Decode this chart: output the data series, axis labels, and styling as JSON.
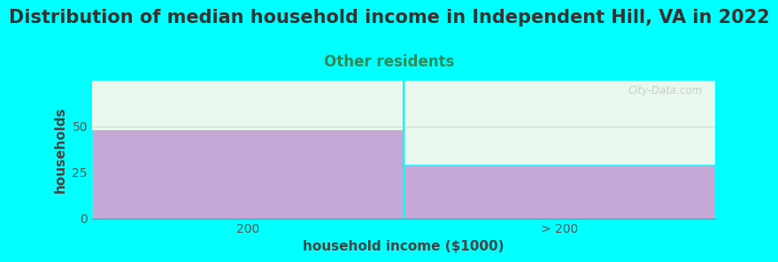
{
  "title": "Distribution of median household income in Independent Hill, VA in 2022",
  "subtitle": "Other residents",
  "xlabel": "household income ($1000)",
  "ylabel": "households",
  "background_color": "#00FFFF",
  "plot_bg_top": "#E8F8EE",
  "plot_bg_bottom": "#F5FDF7",
  "bar_color": "#C4A8D5",
  "categories": [
    "200",
    "> 200"
  ],
  "values": [
    48,
    29
  ],
  "ylim": [
    0,
    75
  ],
  "yticks": [
    0,
    25,
    50
  ],
  "title_fontsize": 15,
  "subtitle_fontsize": 12,
  "subtitle_color": "#2E8B57",
  "axis_label_fontsize": 11,
  "tick_fontsize": 10,
  "watermark": "City-Data.com"
}
